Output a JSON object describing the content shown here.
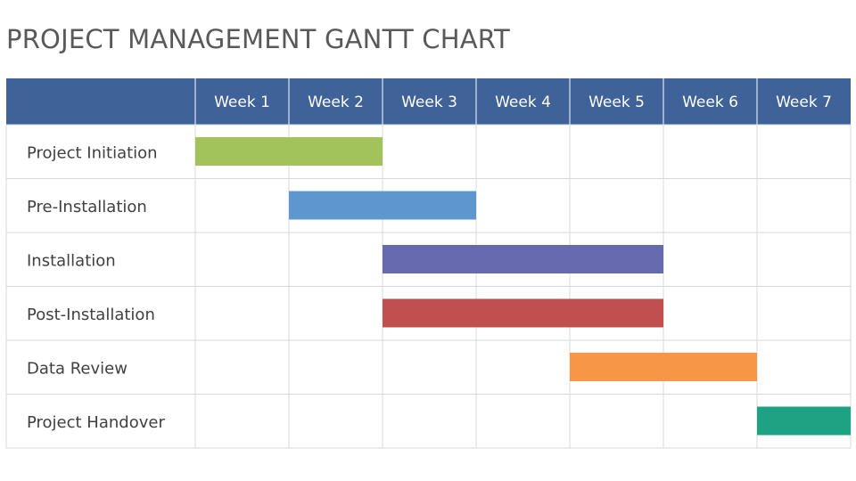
{
  "title": "PROJECT MANAGEMENT GANTT CHART",
  "colors": {
    "header_bg": "#3f6299",
    "header_text": "#ffffff",
    "grid": "#d9d9d9",
    "label_text": "#404040"
  },
  "chart_data": {
    "type": "gantt",
    "title": "PROJECT MANAGEMENT GANTT CHART",
    "columns": [
      "Week 1",
      "Week 2",
      "Week 3",
      "Week 4",
      "Week 5",
      "Week 6",
      "Week 7"
    ],
    "tasks": [
      {
        "name": "Project Initiation",
        "start_week": 1,
        "end_week": 2,
        "color": "#a2c35b"
      },
      {
        "name": "Pre-Installation",
        "start_week": 2,
        "end_week": 3,
        "color": "#5e97d0"
      },
      {
        "name": "Installation",
        "start_week": 3,
        "end_week": 5,
        "color": "#676aaf"
      },
      {
        "name": "Post-Installation",
        "start_week": 3,
        "end_week": 5,
        "color": "#c05050"
      },
      {
        "name": "Data Review",
        "start_week": 5,
        "end_week": 6,
        "color": "#f79646"
      },
      {
        "name": "Project Handover",
        "start_week": 7,
        "end_week": 7,
        "color": "#1fa283"
      }
    ]
  }
}
